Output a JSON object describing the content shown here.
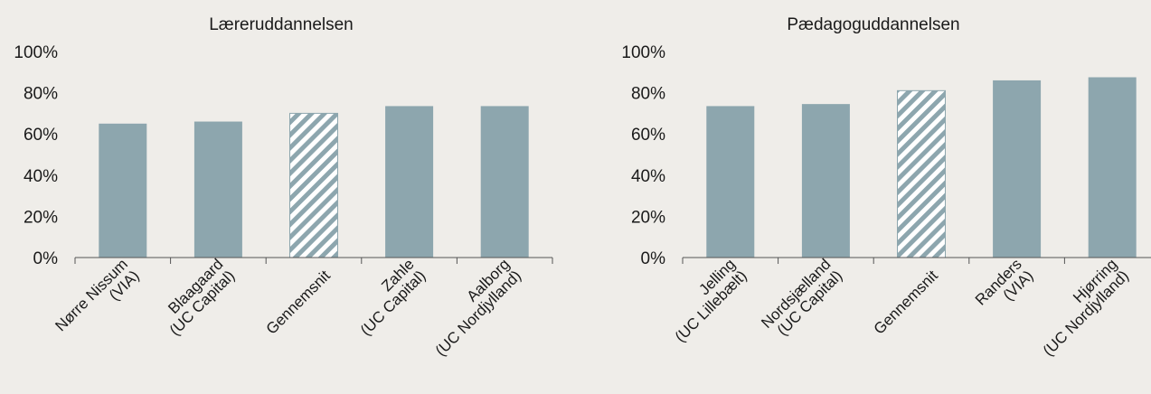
{
  "colors": {
    "background": "#efede9",
    "bar": "#8da6ae",
    "hatch_bar": "#8da6ae",
    "hatch_bg": "#ffffff"
  },
  "chart_data": [
    {
      "type": "bar",
      "title": "Læreruddannelsen",
      "categories": [
        [
          "Nørre Nissum",
          "(VIA)"
        ],
        [
          "Blaagaard",
          "(UC Capital)"
        ],
        [
          "Gennemsnit"
        ],
        [
          "Zahle",
          "(UC Capital)"
        ],
        [
          "Aalborg",
          "(UC Nordjylland)"
        ]
      ],
      "values": [
        65,
        66,
        70,
        73.5,
        73.5
      ],
      "highlight_index": 2,
      "yticks": [
        "0%",
        "20%",
        "40%",
        "60%",
        "80%",
        "100%"
      ],
      "ylim": [
        0,
        100
      ],
      "grid": false
    },
    {
      "type": "bar",
      "title": "Pædagoguddannelsen",
      "categories": [
        [
          "Jelling",
          "(UC Lillebælt)"
        ],
        [
          "Nordsjælland",
          "(UC Capital)"
        ],
        [
          "Gennemsnit"
        ],
        [
          "Randers",
          "(VIA)"
        ],
        [
          "Hjørring",
          "(UC Nordjylland)"
        ]
      ],
      "values": [
        73.5,
        74.5,
        81,
        86,
        87.5
      ],
      "highlight_index": 2,
      "yticks": [
        "0%",
        "20%",
        "40%",
        "60%",
        "80%",
        "100%"
      ],
      "ylim": [
        0,
        100
      ],
      "grid": false
    }
  ]
}
